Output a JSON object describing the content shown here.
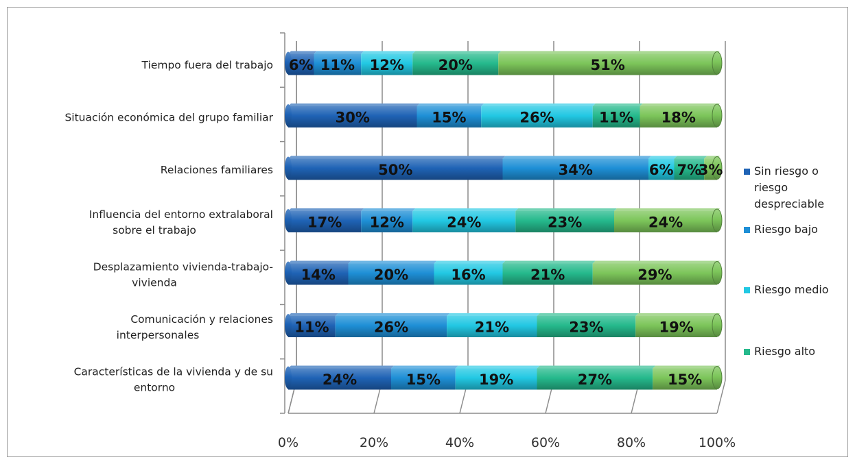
{
  "chart_data": {
    "type": "bar",
    "orientation": "horizontal",
    "stacked": "percent",
    "categories": [
      [
        "Tiempo fuera del trabajo"
      ],
      [
        "Situación económica del grupo familiar"
      ],
      [
        "Relaciones familiares"
      ],
      [
        "Influencia del entorno extralaboral",
        "sobre el trabajo"
      ],
      [
        "Desplazamiento vivienda-trabajo-",
        "vivienda"
      ],
      [
        "Comunicación y relaciones",
        "interpersonales"
      ],
      [
        "Características de la vivienda y de su",
        "entorno"
      ]
    ],
    "series": [
      {
        "name": [
          "Sin riesgo o",
          "riesgo",
          "despreciable"
        ],
        "color": "#1f63b5",
        "values": [
          6,
          30,
          50,
          17,
          14,
          11,
          24
        ]
      },
      {
        "name": [
          "Riesgo bajo"
        ],
        "color": "#1e8fd6",
        "values": [
          11,
          15,
          34,
          12,
          20,
          26,
          15
        ]
      },
      {
        "name": [
          "Riesgo medio"
        ],
        "color": "#22c8e3",
        "values": [
          12,
          26,
          6,
          24,
          16,
          21,
          19
        ]
      },
      {
        "name": [
          "Riesgo alto"
        ],
        "color": "#25b98c",
        "values": [
          20,
          11,
          7,
          23,
          21,
          23,
          27
        ]
      },
      {
        "name": [],
        "color": "#7cc55a",
        "values": [
          51,
          18,
          3,
          24,
          29,
          19,
          15
        ]
      }
    ],
    "data_labels": [
      [
        "6%",
        "11%",
        "12%",
        "20%",
        "51%"
      ],
      [
        "30%",
        "15%",
        "26%",
        "11%",
        "18%"
      ],
      [
        "50%",
        "34%",
        "6%",
        "7%",
        "3%"
      ],
      [
        "17%",
        "12%",
        "24%",
        "23%",
        "24%"
      ],
      [
        "14%",
        "20%",
        "16%",
        "21%",
        "29%"
      ],
      [
        "11%",
        "26%",
        "21%",
        "23%",
        "19%"
      ],
      [
        "24%",
        "15%",
        "19%",
        "27%",
        "15%"
      ]
    ],
    "x_ticks": [
      "0%",
      "20%",
      "40%",
      "60%",
      "80%",
      "100%"
    ],
    "xlim": [
      0,
      100
    ],
    "grid": true,
    "legend": "right",
    "title": "",
    "xlabel": "",
    "ylabel": ""
  }
}
